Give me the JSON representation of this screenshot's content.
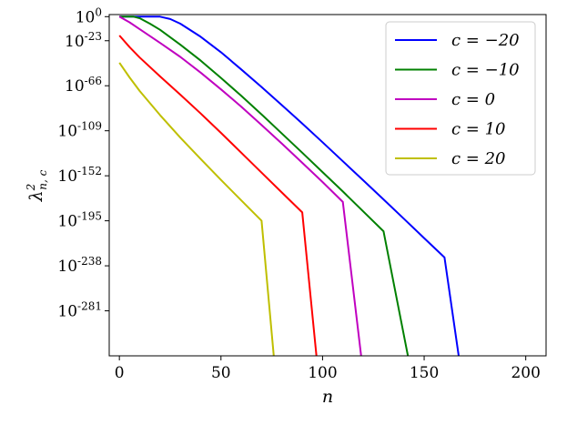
{
  "chart_data": {
    "type": "line",
    "title": "",
    "xlabel": "n",
    "ylabel": "λ²n,c",
    "ylabel_main": "λ",
    "ylabel_sup": "2",
    "ylabel_sub": "n, c",
    "xlim": [
      -5,
      210
    ],
    "ylim_log10": [
      -324,
      2
    ],
    "y_scale": "log",
    "grid": false,
    "legend_position": "top-right",
    "x_ticks": [
      {
        "value": 0,
        "label": "0"
      },
      {
        "value": 50,
        "label": "50"
      },
      {
        "value": 100,
        "label": "100"
      },
      {
        "value": 150,
        "label": "150"
      },
      {
        "value": 200,
        "label": "200"
      }
    ],
    "y_ticks": [
      {
        "exp": 0,
        "base": "10",
        "sup": "0"
      },
      {
        "exp": -23,
        "base": "10",
        "sup": "-23"
      },
      {
        "exp": -66,
        "base": "10",
        "sup": "-66"
      },
      {
        "exp": -109,
        "base": "10",
        "sup": "-109"
      },
      {
        "exp": -152,
        "base": "10",
        "sup": "-152"
      },
      {
        "exp": -195,
        "base": "10",
        "sup": "-195"
      },
      {
        "exp": -238,
        "base": "10",
        "sup": "-238"
      },
      {
        "exp": -281,
        "base": "10",
        "sup": "-281"
      }
    ],
    "series": [
      {
        "name": "c = −20",
        "color": "#0000ff",
        "x": [
          0,
          20,
          25,
          30,
          40,
          50,
          60,
          70,
          80,
          90,
          100,
          110,
          120,
          130,
          140,
          150,
          160,
          167
        ],
        "log10_y": [
          0,
          0,
          -2.3,
          -6.7,
          -19.2,
          -34.0,
          -50.4,
          -67.2,
          -84.6,
          -102.1,
          -120.0,
          -138.1,
          -156.3,
          -174.6,
          -193.0,
          -211.5,
          -230.0,
          -324
        ]
      },
      {
        "name": "c = −10",
        "color": "#008000",
        "x": [
          0,
          7,
          10,
          15,
          20,
          30,
          40,
          50,
          60,
          70,
          80,
          90,
          100,
          110,
          120,
          130,
          142
        ],
        "log10_y": [
          0,
          0,
          -1.5,
          -6.7,
          -12.5,
          -26.8,
          -42.0,
          -58.5,
          -75.6,
          -93.4,
          -111.7,
          -130.0,
          -148.5,
          -167.0,
          -186.0,
          -205.0,
          -324
        ]
      },
      {
        "name": "c = 0",
        "color": "#c000c0",
        "x": [
          0,
          5,
          10,
          20,
          30,
          40,
          50,
          60,
          70,
          80,
          90,
          100,
          110,
          119
        ],
        "log10_y": [
          0,
          -5.4,
          -12.0,
          -25.0,
          -38.4,
          -53.5,
          -69.5,
          -86.0,
          -103.5,
          -121.4,
          -139.6,
          -158.0,
          -177.0,
          -324
        ]
      },
      {
        "name": "c = 10",
        "color": "#ff0000",
        "x": [
          0,
          5,
          10,
          20,
          30,
          40,
          50,
          60,
          70,
          80,
          90,
          97
        ],
        "log10_y": [
          -18.0,
          -29.0,
          -39.0,
          -57.0,
          -74.5,
          -92.5,
          -111.0,
          -130.0,
          -149.0,
          -168.0,
          -187.0,
          -324
        ]
      },
      {
        "name": "c = 20",
        "color": "#bfbf00",
        "x": [
          0,
          5,
          10,
          20,
          30,
          40,
          50,
          60,
          70,
          76
        ],
        "log10_y": [
          -44.0,
          -58.0,
          -71.0,
          -94.0,
          -115.5,
          -136.0,
          -156.0,
          -175.5,
          -195.0,
          -324
        ]
      }
    ]
  }
}
